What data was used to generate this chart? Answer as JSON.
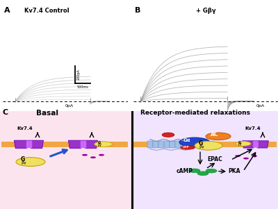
{
  "fig_width": 4.0,
  "fig_height": 3.01,
  "dpi": 100,
  "bg_color": "#ffffff",
  "panel_A_title": "Kv7.4 Control",
  "panel_B_title": "+ Gβγ",
  "basal_label": "Basal",
  "receptor_label": "Receptor-mediated relaxations",
  "membrane_color_l": "#f0a030",
  "membrane_color_r": "#f0a030",
  "cell_bg_basal": "#fce8f0",
  "cell_bg_right": "#f0e8ff",
  "kv_color": "#9933cc",
  "kv_light": "#bb77ee",
  "g_yellow": "#f0e060",
  "gpcr_color": "#a0c0e8",
  "galpha_color": "#2244cc",
  "ac_color": "#f08020",
  "gtp_color": "#cc2222",
  "camp_color": "#22aa44",
  "arrow_black": "#111111",
  "arrow_blue": "#2255cc",
  "dot_purple": "#990099",
  "trace_gray_A": "#b8b8b8",
  "trace_gray_B": "#909090"
}
